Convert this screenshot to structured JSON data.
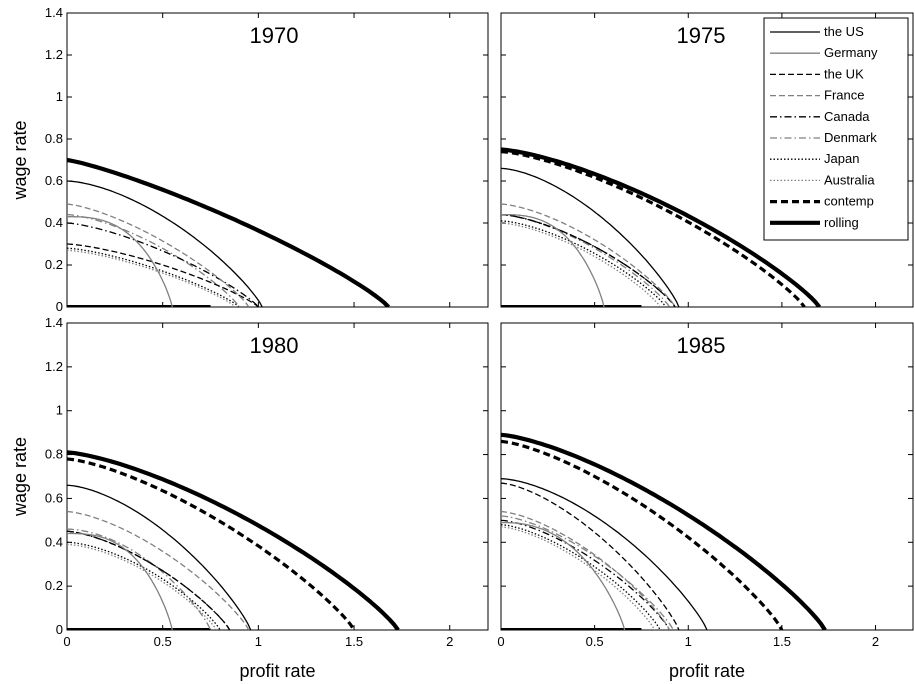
{
  "chart_data": {
    "type": "line",
    "xlabel": "profit rate",
    "ylabel": "wage rate",
    "xlim": [
      0,
      2.2
    ],
    "ylim": [
      0,
      1.4
    ],
    "xticks": [
      "0",
      "0.5",
      "1",
      "1.5",
      "2"
    ],
    "yticks": [
      "0",
      "0.2",
      "0.4",
      "0.6",
      "0.8",
      "1",
      "1.2",
      "1.4"
    ],
    "grid": false,
    "legend_position": "top-right of the 1975 panel",
    "legend": [
      {
        "label": "the US",
        "color": "#000000",
        "dash": "",
        "width": 1.3
      },
      {
        "label": "Germany",
        "color": "#808080",
        "dash": "",
        "width": 1.3
      },
      {
        "label": "the UK",
        "color": "#000000",
        "dash": "6,3",
        "width": 1.3
      },
      {
        "label": "France",
        "color": "#808080",
        "dash": "6,3",
        "width": 1.3
      },
      {
        "label": "Canada",
        "color": "#000000",
        "dash": "7,3,1.5,3",
        "width": 1.3
      },
      {
        "label": "Denmark",
        "color": "#808080",
        "dash": "7,3,1.5,3",
        "width": 1.3
      },
      {
        "label": "Japan",
        "color": "#000000",
        "dash": "1.5,2",
        "width": 1.3
      },
      {
        "label": "Australia",
        "color": "#808080",
        "dash": "1.5,2",
        "width": 1.3
      },
      {
        "label": "contemp",
        "color": "#000000",
        "dash": "7,4",
        "width": 3.2
      },
      {
        "label": "rolling",
        "color": "#000000",
        "dash": "",
        "width": 4.2
      }
    ],
    "panels": [
      {
        "title": "1970",
        "curves": {
          "the US": {
            "w0": 0.6,
            "r": 1.02,
            "p": 1.6
          },
          "Germany": {
            "w0": 0.43,
            "r": 0.55,
            "p": 2.8
          },
          "the UK": {
            "w0": 0.3,
            "r": 1.0,
            "p": 1.4
          },
          "France": {
            "w0": 0.49,
            "r": 0.95,
            "p": 1.4
          },
          "Canada": {
            "w0": 0.4,
            "r": 1.0,
            "p": 1.4
          },
          "Denmark": {
            "w0": 0.44,
            "r": 0.9,
            "p": 1.5
          },
          "Japan": {
            "w0": 0.28,
            "r": 0.9,
            "p": 1.4
          },
          "Australia": {
            "w0": 0.27,
            "r": 0.88,
            "p": 1.4
          },
          "rolling": {
            "w0": 0.7,
            "r": 1.68,
            "p": 1.2
          }
        }
      },
      {
        "title": "1975",
        "curves": {
          "the US": {
            "w0": 0.66,
            "r": 0.95,
            "p": 1.6
          },
          "Germany": {
            "w0": 0.44,
            "r": 0.55,
            "p": 2.8
          },
          "the UK": {
            "w0": 0.44,
            "r": 0.93,
            "p": 1.5
          },
          "France": {
            "w0": 0.49,
            "r": 0.93,
            "p": 1.5
          },
          "Canada": {
            "w0": 0.44,
            "r": 0.93,
            "p": 1.5
          },
          "Denmark": {
            "w0": 0.44,
            "r": 0.9,
            "p": 1.5
          },
          "Japan": {
            "w0": 0.41,
            "r": 0.88,
            "p": 1.5
          },
          "Australia": {
            "w0": 0.4,
            "r": 0.85,
            "p": 1.5
          },
          "contemp": {
            "w0": 0.74,
            "r": 1.62,
            "p": 1.4
          },
          "rolling": {
            "w0": 0.75,
            "r": 1.7,
            "p": 1.4
          }
        }
      },
      {
        "title": "1980",
        "curves": {
          "the US": {
            "w0": 0.66,
            "r": 0.96,
            "p": 1.6
          },
          "Germany": {
            "w0": 0.44,
            "r": 0.55,
            "p": 2.8
          },
          "the UK": {
            "w0": 0.45,
            "r": 0.85,
            "p": 1.5
          },
          "France": {
            "w0": 0.54,
            "r": 0.95,
            "p": 1.5
          },
          "Canada": {
            "w0": 0.45,
            "r": 0.85,
            "p": 1.5
          },
          "Denmark": {
            "w0": 0.46,
            "r": 0.75,
            "p": 1.8
          },
          "Japan": {
            "w0": 0.4,
            "r": 0.8,
            "p": 1.6
          },
          "Australia": {
            "w0": 0.39,
            "r": 0.78,
            "p": 1.6
          },
          "contemp": {
            "w0": 0.78,
            "r": 1.5,
            "p": 1.4
          },
          "rolling": {
            "w0": 0.81,
            "r": 1.73,
            "p": 1.4
          }
        }
      },
      {
        "title": "1985",
        "curves": {
          "the US": {
            "w0": 0.69,
            "r": 1.1,
            "p": 1.6
          },
          "Germany": {
            "w0": 0.49,
            "r": 0.66,
            "p": 2.4
          },
          "the UK": {
            "w0": 0.67,
            "r": 0.95,
            "p": 1.5
          },
          "France": {
            "w0": 0.54,
            "r": 0.9,
            "p": 1.5
          },
          "Canada": {
            "w0": 0.5,
            "r": 0.9,
            "p": 1.5
          },
          "Denmark": {
            "w0": 0.52,
            "r": 0.92,
            "p": 1.5
          },
          "Japan": {
            "w0": 0.48,
            "r": 0.85,
            "p": 1.5
          },
          "Australia": {
            "w0": 0.47,
            "r": 0.82,
            "p": 1.5
          },
          "contemp": {
            "w0": 0.86,
            "r": 1.5,
            "p": 1.4
          },
          "rolling": {
            "w0": 0.89,
            "r": 1.73,
            "p": 1.4
          }
        }
      }
    ]
  }
}
